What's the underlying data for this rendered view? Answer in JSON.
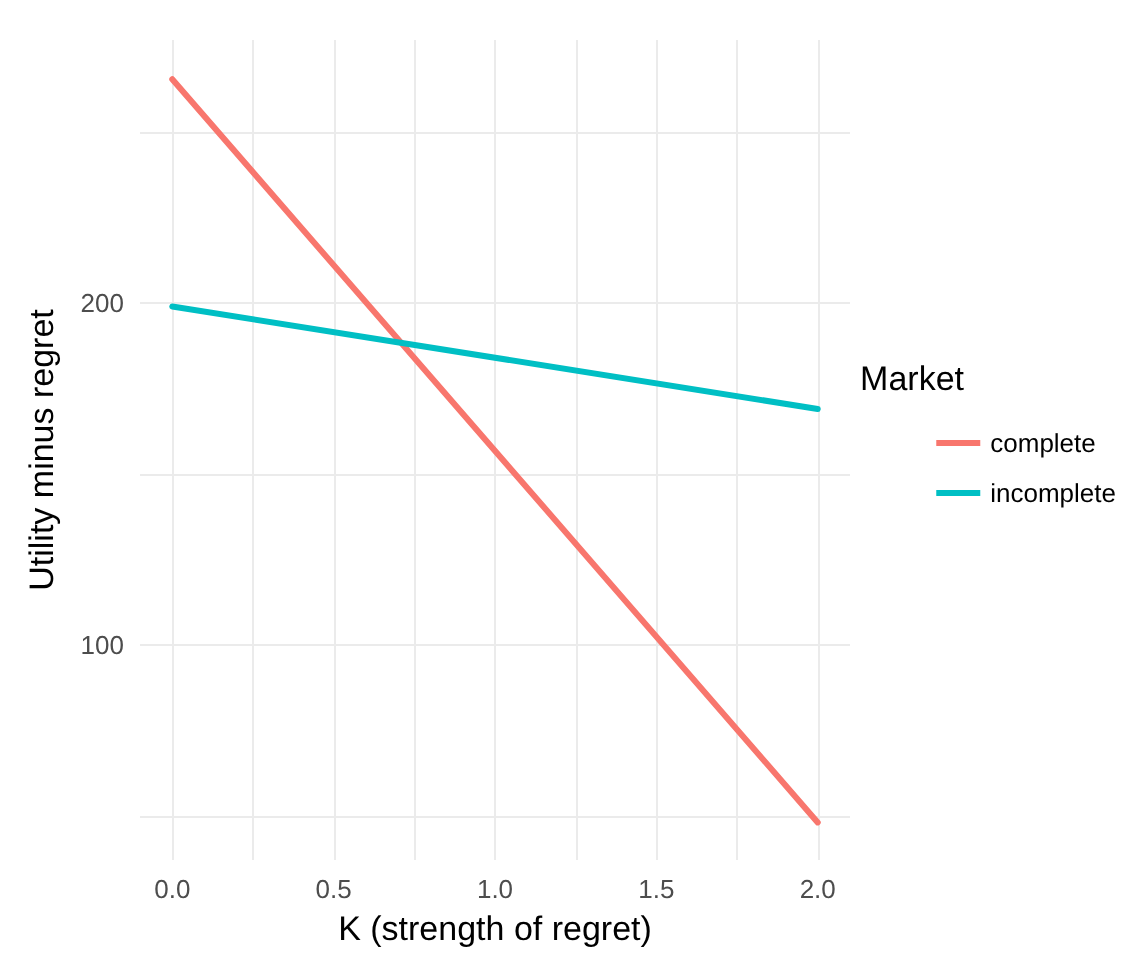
{
  "chart_data": {
    "type": "line",
    "xlabel": "K (strength of regret)",
    "ylabel": "Utility minus regret",
    "legend_title": "Market",
    "x": [
      0,
      2
    ],
    "series": [
      {
        "name": "complete",
        "color": "#f8766d",
        "values": [
          265.5,
          48
        ]
      },
      {
        "name": "incomplete",
        "color": "#00bfc4",
        "values": [
          199,
          169
        ]
      }
    ],
    "xlim": [
      -0.1,
      2.1
    ],
    "xticks": [
      {
        "value": 0,
        "label": "0.0"
      },
      {
        "value": 0.25,
        "label": null
      },
      {
        "value": 0.5,
        "label": "0.5"
      },
      {
        "value": 0.75,
        "label": null
      },
      {
        "value": 1,
        "label": "1.0"
      },
      {
        "value": 1.25,
        "label": null
      },
      {
        "value": 1.5,
        "label": "1.5"
      },
      {
        "value": 1.75,
        "label": null
      },
      {
        "value": 2,
        "label": "2.0"
      }
    ],
    "ylim": [
      37,
      277
    ],
    "yticks": [
      {
        "value": 50,
        "label": null
      },
      100,
      {
        "value": 150,
        "label": null
      },
      200,
      {
        "value": 250,
        "label": null
      }
    ],
    "grid": true,
    "legend": "right",
    "marker": "none",
    "line_style": "solid"
  }
}
